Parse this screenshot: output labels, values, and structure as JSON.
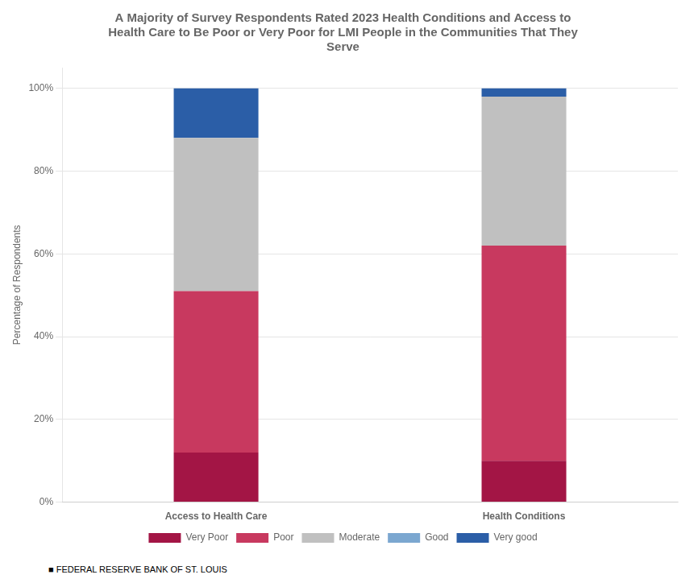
{
  "chart_data": {
    "type": "bar",
    "title": "A Majority of Survey Respondents Rated 2023 Health Conditions and Access to\nHealth Care to Be Poor or Very Poor for LMI People in the Communities That They\nServe",
    "ylabel": "Percentage of Respondents",
    "categories": [
      "Access to Health Care",
      "Health Conditions"
    ],
    "series": [
      {
        "name": "Very Poor",
        "color": "#A31545",
        "values": [
          12,
          10
        ]
      },
      {
        "name": "Poor",
        "color": "#C8395F",
        "values": [
          39,
          52
        ]
      },
      {
        "name": "Moderate",
        "color": "#C0C0C0",
        "values": [
          37,
          36
        ]
      },
      {
        "name": "Good",
        "color": "#7BA7D0",
        "values": [
          0,
          0
        ]
      },
      {
        "name": "Very good",
        "color": "#2B5EA7",
        "values": [
          12,
          2
        ]
      }
    ],
    "stacked": true,
    "ylim": [
      0,
      105
    ],
    "yticks": [
      {
        "value": 0,
        "label": "0%"
      },
      {
        "value": 20,
        "label": "20%"
      },
      {
        "value": 40,
        "label": "40%"
      },
      {
        "value": 60,
        "label": "60%"
      },
      {
        "value": 80,
        "label": "80%"
      },
      {
        "value": 100,
        "label": "100%"
      }
    ],
    "grid": true,
    "legend": "bottom",
    "footer": "■  FEDERAL RESERVE BANK OF ST. LOUIS"
  }
}
